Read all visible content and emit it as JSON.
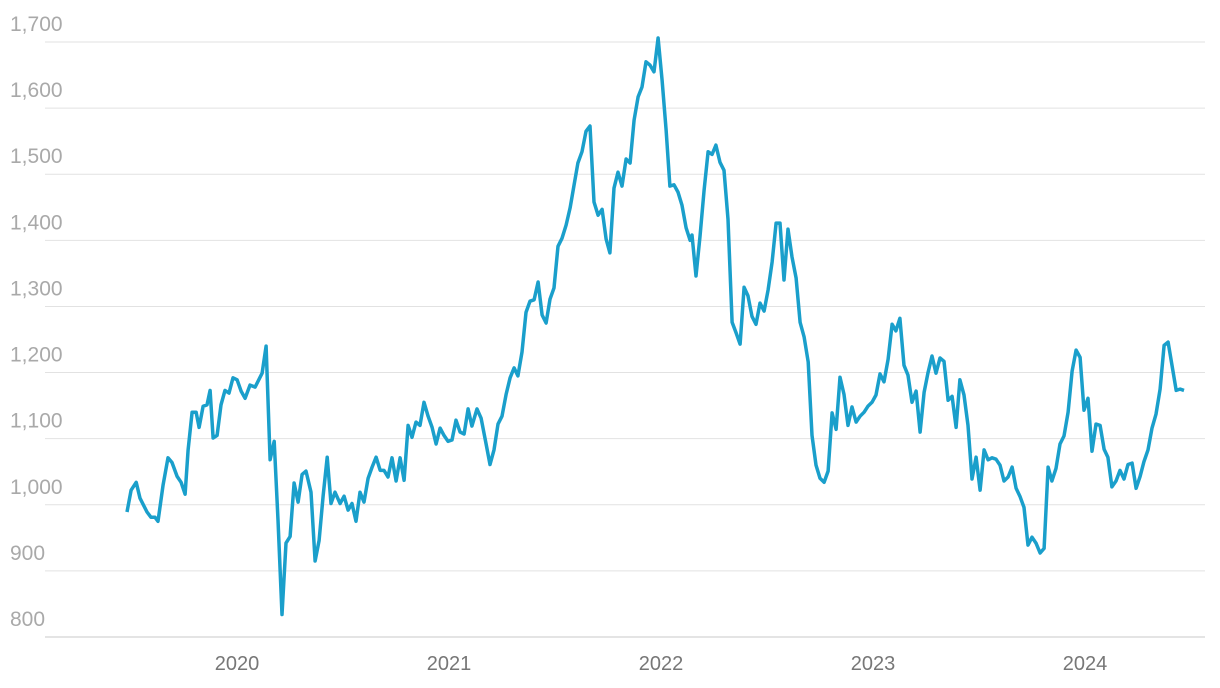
{
  "chart_data": {
    "type": "line",
    "x": [
      2019.481,
      2019.5,
      2019.524,
      2019.542,
      2019.575,
      2019.594,
      2019.613,
      2019.627,
      2019.651,
      2019.674,
      2019.693,
      2019.717,
      2019.736,
      2019.755,
      2019.769,
      2019.788,
      2019.807,
      2019.821,
      2019.84,
      2019.858,
      2019.873,
      2019.887,
      2019.906,
      2019.924,
      2019.943,
      2019.962,
      2019.981,
      2020.0,
      2020.019,
      2020.038,
      2020.061,
      2020.085,
      2020.118,
      2020.137,
      2020.156,
      2020.175,
      2020.193,
      2020.212,
      2020.231,
      2020.25,
      2020.269,
      2020.288,
      2020.307,
      2020.325,
      2020.349,
      2020.368,
      2020.387,
      2020.406,
      2020.425,
      2020.443,
      2020.462,
      2020.486,
      2020.505,
      2020.524,
      2020.542,
      2020.561,
      2020.58,
      2020.599,
      2020.618,
      2020.637,
      2020.656,
      2020.675,
      2020.693,
      2020.712,
      2020.731,
      2020.75,
      2020.769,
      2020.788,
      2020.807,
      2020.825,
      2020.844,
      2020.863,
      2020.882,
      2020.901,
      2020.92,
      2020.939,
      2020.958,
      2020.976,
      2020.995,
      2021.014,
      2021.033,
      2021.052,
      2021.071,
      2021.09,
      2021.108,
      2021.132,
      2021.151,
      2021.175,
      2021.193,
      2021.212,
      2021.231,
      2021.25,
      2021.269,
      2021.288,
      2021.307,
      2021.325,
      2021.344,
      2021.363,
      2021.382,
      2021.401,
      2021.42,
      2021.439,
      2021.458,
      2021.476,
      2021.495,
      2021.514,
      2021.533,
      2021.552,
      2021.571,
      2021.59,
      2021.608,
      2021.627,
      2021.646,
      2021.665,
      2021.684,
      2021.703,
      2021.722,
      2021.741,
      2021.759,
      2021.778,
      2021.797,
      2021.816,
      2021.835,
      2021.854,
      2021.873,
      2021.892,
      2021.91,
      2021.929,
      2021.948,
      2021.967,
      2021.986,
      2022.005,
      2022.024,
      2022.042,
      2022.061,
      2022.08,
      2022.099,
      2022.118,
      2022.137,
      2022.146,
      2022.165,
      2022.184,
      2022.203,
      2022.222,
      2022.241,
      2022.259,
      2022.278,
      2022.297,
      2022.316,
      2022.335,
      2022.354,
      2022.373,
      2022.392,
      2022.41,
      2022.429,
      2022.448,
      2022.467,
      2022.486,
      2022.505,
      2022.524,
      2022.543,
      2022.561,
      2022.58,
      2022.599,
      2022.618,
      2022.637,
      2022.656,
      2022.675,
      2022.694,
      2022.712,
      2022.731,
      2022.75,
      2022.769,
      2022.788,
      2022.807,
      2022.826,
      2022.844,
      2022.863,
      2022.882,
      2022.901,
      2022.92,
      2022.939,
      2022.958,
      2022.976,
      2022.995,
      2023.014,
      2023.033,
      2023.052,
      2023.071,
      2023.09,
      2023.108,
      2023.127,
      2023.146,
      2023.165,
      2023.184,
      2023.203,
      2023.222,
      2023.241,
      2023.259,
      2023.278,
      2023.297,
      2023.316,
      2023.335,
      2023.354,
      2023.373,
      2023.392,
      2023.41,
      2023.429,
      2023.448,
      2023.467,
      2023.486,
      2023.505,
      2023.524,
      2023.543,
      2023.561,
      2023.58,
      2023.599,
      2023.618,
      2023.637,
      2023.656,
      2023.675,
      2023.693,
      2023.712,
      2023.731,
      2023.75,
      2023.769,
      2023.788,
      2023.807,
      2023.826,
      2023.844,
      2023.863,
      2023.882,
      2023.901,
      2023.92,
      2023.939,
      2023.958,
      2023.977,
      2023.995,
      2024.014,
      2024.033,
      2024.052,
      2024.071,
      2024.09,
      2024.108,
      2024.127,
      2024.146,
      2024.165,
      2024.184,
      2024.203,
      2024.222,
      2024.241,
      2024.26,
      2024.278,
      2024.297,
      2024.316,
      2024.335,
      2024.354,
      2024.373,
      2024.392,
      2024.411,
      2024.43,
      2024.448,
      2024.467
    ],
    "series": [
      {
        "color": "#1a9fcb",
        "values": [
          989,
          1022,
          1034,
          1010,
          989,
          981,
          981,
          975,
          1030,
          1071,
          1064,
          1043,
          1034,
          1016,
          1083,
          1140,
          1140,
          1117,
          1149,
          1151,
          1173,
          1101,
          1105,
          1151,
          1173,
          1169,
          1192,
          1189,
          1172,
          1161,
          1181,
          1178,
          1199,
          1240,
          1068,
          1096,
          977,
          834,
          942,
          952,
          1033,
          1004,
          1046,
          1051,
          1019,
          915,
          946,
          1013,
          1072,
          1002,
          1019,
          1002,
          1013,
          992,
          1002,
          975,
          1019,
          1004,
          1040,
          1057,
          1072,
          1052,
          1052,
          1042,
          1071,
          1036,
          1071,
          1037,
          1120,
          1102,
          1125,
          1120,
          1155,
          1134,
          1117,
          1092,
          1116,
          1105,
          1096,
          1098,
          1128,
          1110,
          1107,
          1145,
          1119,
          1145,
          1131,
          1092,
          1061,
          1083,
          1122,
          1134,
          1167,
          1192,
          1207,
          1195,
          1231,
          1291,
          1308,
          1310,
          1337,
          1287,
          1275,
          1311,
          1328,
          1391,
          1403,
          1423,
          1449,
          1484,
          1517,
          1534,
          1565,
          1573,
          1458,
          1438,
          1447,
          1402,
          1381,
          1479,
          1503,
          1482,
          1523,
          1517,
          1582,
          1617,
          1632,
          1670,
          1665,
          1655,
          1706,
          1642,
          1567,
          1482,
          1484,
          1473,
          1453,
          1419,
          1400,
          1408,
          1346,
          1406,
          1476,
          1534,
          1530,
          1544,
          1518,
          1506,
          1432,
          1276,
          1260,
          1243,
          1329,
          1316,
          1285,
          1273,
          1305,
          1293,
          1325,
          1367,
          1426,
          1426,
          1340,
          1417,
          1375,
          1343,
          1276,
          1254,
          1216,
          1105,
          1060,
          1040,
          1034,
          1051,
          1139,
          1114,
          1193,
          1167,
          1120,
          1148,
          1125,
          1134,
          1140,
          1149,
          1155,
          1166,
          1198,
          1186,
          1220,
          1273,
          1263,
          1282,
          1211,
          1196,
          1155,
          1172,
          1110,
          1170,
          1199,
          1225,
          1199,
          1222,
          1217,
          1158,
          1164,
          1117,
          1189,
          1166,
          1120,
          1039,
          1072,
          1022,
          1083,
          1068,
          1071,
          1069,
          1060,
          1036,
          1042,
          1057,
          1025,
          1013,
          996,
          939,
          951,
          942,
          927,
          934,
          1057,
          1036,
          1055,
          1092,
          1104,
          1140,
          1202,
          1234,
          1223,
          1143,
          1161,
          1081,
          1122,
          1120,
          1084,
          1072,
          1027,
          1036,
          1052,
          1039,
          1061,
          1063,
          1025,
          1043,
          1065,
          1083,
          1116,
          1137,
          1175,
          1241,
          1246,
          1210,
          1173,
          1175,
          1173
        ]
      }
    ],
    "xlim": [
      2019.094,
      2024.566
    ],
    "xticks": [
      2020,
      2021,
      2022,
      2023,
      2024
    ],
    "ylim": [
      800,
      1700
    ],
    "yticks": [
      800,
      900,
      {
        "value": 1000,
        "label": "1,000"
      },
      {
        "value": 1100,
        "label": "1,100"
      },
      {
        "value": 1200,
        "label": "1,200"
      },
      {
        "value": 1300,
        "label": "1,300"
      },
      {
        "value": 1400,
        "label": "1,400"
      },
      {
        "value": 1500,
        "label": "1,500"
      },
      {
        "value": 1600,
        "label": "1,600"
      },
      {
        "value": 1700,
        "label": "1,700"
      }
    ],
    "grid": true
  }
}
